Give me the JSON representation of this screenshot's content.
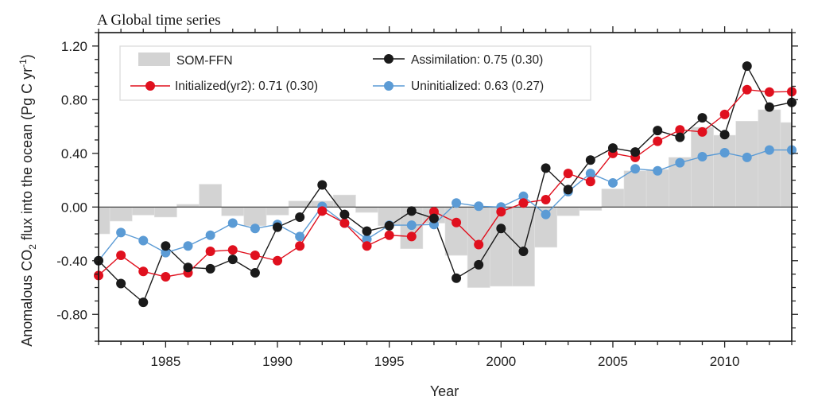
{
  "chart_data": {
    "type": "bar+line",
    "title": "A Global time series",
    "xlabel": "Year",
    "ylabel": {
      "prefix": "Anomalous CO",
      "subscript": "2",
      "middle": " flux into the ocean (Pg C yr",
      "superscript": "-1",
      "suffix": ")"
    },
    "xlim": [
      1982,
      2013
    ],
    "ylim": [
      -1.0,
      1.3
    ],
    "x_ticks": [
      1985,
      1990,
      1995,
      2000,
      2005,
      2010
    ],
    "x_tick_labels": [
      "1985",
      "1990",
      "1995",
      "2000",
      "2005",
      "2010"
    ],
    "y_ticks": [
      1.2,
      0.8,
      0.4,
      0.0,
      -0.4,
      -0.8
    ],
    "y_tick_labels": [
      "1.20",
      "0.80",
      "0.40",
      "0.00",
      "-0.40",
      "-0.80"
    ],
    "zero_line": true,
    "grid": false,
    "legend_position": "top-left",
    "x": [
      1982,
      1983,
      1984,
      1985,
      1986,
      1987,
      1988,
      1989,
      1990,
      1991,
      1992,
      1993,
      1994,
      1995,
      1996,
      1997,
      1998,
      1999,
      2000,
      2001,
      2002,
      2003,
      2004,
      2005,
      2006,
      2007,
      2008,
      2009,
      2010,
      2011,
      2012,
      2013
    ],
    "bars": {
      "name": "SOM-FFN",
      "legend_label": "SOM-FFN",
      "color": "#d3d3d3",
      "values": [
        -0.2,
        -0.105,
        -0.06,
        -0.075,
        0.02,
        0.17,
        -0.065,
        -0.14,
        -0.06,
        0.045,
        0.045,
        0.09,
        -0.04,
        -0.14,
        -0.31,
        -0.12,
        -0.36,
        -0.6,
        -0.59,
        -0.59,
        -0.3,
        -0.065,
        -0.025,
        0.135,
        0.27,
        0.28,
        0.37,
        0.595,
        0.535,
        0.64,
        0.725,
        0.63
      ]
    },
    "series": [
      {
        "name": "Assimilation",
        "legend_label": "Assimilation:  0.75 (0.30)",
        "color": "#1a1a1a",
        "values": [
          -0.4,
          -0.57,
          -0.71,
          -0.29,
          -0.45,
          -0.46,
          -0.39,
          -0.49,
          -0.15,
          -0.075,
          0.165,
          -0.055,
          -0.18,
          -0.14,
          -0.03,
          -0.085,
          -0.53,
          -0.43,
          -0.16,
          -0.33,
          0.29,
          0.13,
          0.35,
          0.44,
          0.41,
          0.57,
          0.52,
          0.665,
          0.54,
          1.05,
          0.745,
          0.78
        ]
      },
      {
        "name": "Initialized(yr2)",
        "legend_label": "Initialized(yr2):  0.71 (0.30)",
        "color": "#e0101e",
        "values": [
          -0.51,
          -0.36,
          -0.48,
          -0.52,
          -0.49,
          -0.33,
          -0.32,
          -0.36,
          -0.4,
          -0.29,
          -0.03,
          -0.12,
          -0.29,
          -0.21,
          -0.22,
          -0.035,
          -0.115,
          -0.28,
          -0.035,
          0.03,
          0.055,
          0.25,
          0.19,
          0.4,
          0.37,
          0.49,
          0.575,
          0.56,
          0.69,
          0.875,
          0.857,
          0.86
        ]
      },
      {
        "name": "Uninitialized",
        "legend_label": "Uninitialized:  0.63 (0.27)",
        "color": "#5b9bd5",
        "values": [
          -0.4,
          -0.19,
          -0.25,
          -0.34,
          -0.29,
          -0.21,
          -0.12,
          -0.16,
          -0.13,
          -0.22,
          0.005,
          -0.12,
          -0.24,
          -0.135,
          -0.135,
          -0.13,
          0.03,
          0.006,
          0.0,
          0.08,
          -0.055,
          0.115,
          0.25,
          0.18,
          0.285,
          0.27,
          0.33,
          0.375,
          0.405,
          0.37,
          0.425,
          0.425
        ]
      }
    ]
  }
}
